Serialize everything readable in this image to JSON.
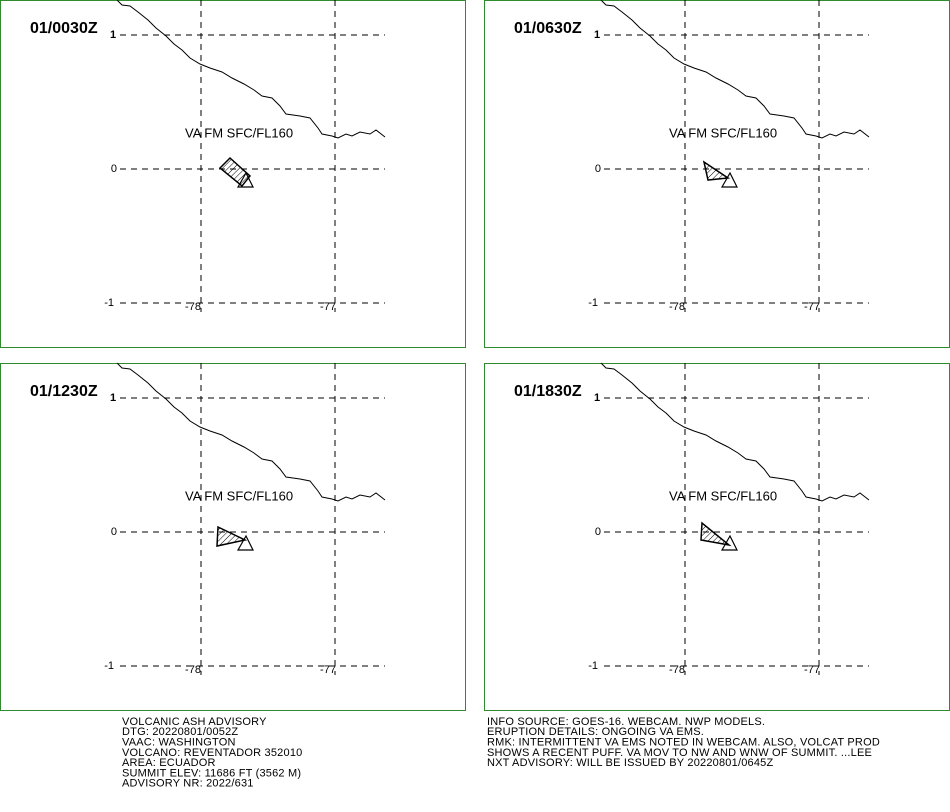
{
  "panels": [
    {
      "time": "01/0030Z",
      "sub": "1",
      "label": "VA FM SFC/FL160",
      "lat_labels": [
        "0",
        "-1"
      ],
      "lon_labels": [
        "-78",
        "-77"
      ]
    },
    {
      "time": "01/0630Z",
      "sub": "1",
      "label": "VA FM SFC/FL160",
      "lat_labels": [
        "0",
        "-1"
      ],
      "lon_labels": [
        "-78",
        "-77"
      ]
    },
    {
      "time": "01/1230Z",
      "sub": "1",
      "label": "VA FM SFC/FL160",
      "lat_labels": [
        "0",
        "-1"
      ],
      "lon_labels": [
        "-78",
        "-77"
      ]
    },
    {
      "time": "01/1830Z",
      "sub": "1",
      "label": "VA FM SFC/FL160",
      "lat_labels": [
        "0",
        "-1"
      ],
      "lon_labels": [
        "-78",
        "-77"
      ]
    }
  ],
  "advisory_left": [
    "VOLCANIC ASH ADVISORY",
    "DTG: 20220801/0052Z",
    "VAAC: WASHINGTON",
    "VOLCANO: REVENTADOR 352010",
    "AREA: ECUADOR",
    "SUMMIT ELEV: 11686 FT (3562 M)",
    "ADVISORY NR: 2022/631"
  ],
  "advisory_right": [
    "INFO SOURCE: GOES-16. WEBCAM. NWP MODELS.",
    "ERUPTION DETAILS: ONGOING VA EMS.",
    "RMK: INTERMITTENT VA EMS NOTED IN WEBCAM. ALSO, VOLCAT PROD",
    "SHOWS A RECENT PUFF. VA MOV TO NW AND WNW OF SUMMIT. ...LEE",
    "NXT ADVISORY: WILL BE ISSUED BY 20220801/0645Z"
  ]
}
